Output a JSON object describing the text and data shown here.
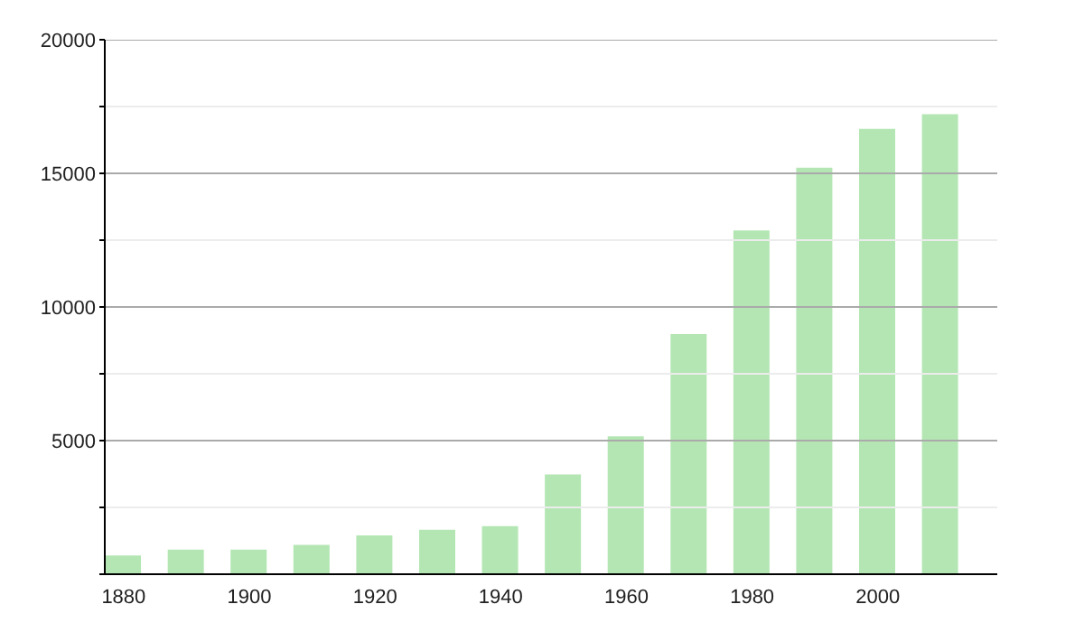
{
  "chart_data": {
    "type": "bar",
    "x": [
      1880,
      1890,
      1900,
      1910,
      1920,
      1930,
      1940,
      1950,
      1960,
      1970,
      1980,
      1990,
      2000,
      2010
    ],
    "values": [
      700,
      920,
      920,
      1100,
      1450,
      1660,
      1800,
      3730,
      5160,
      8990,
      12860,
      15210,
      16660,
      17210
    ],
    "color": "#b3e6b3",
    "xlim": [
      1877,
      2019
    ],
    "xticks": [
      1880,
      1900,
      1920,
      1940,
      1960,
      1980,
      2000
    ],
    "ylim": [
      0,
      20000
    ],
    "yticks": [
      {
        "value": 0,
        "label": null
      },
      {
        "value": 2500,
        "label": null
      },
      5000,
      {
        "value": 7500,
        "label": null
      },
      10000,
      {
        "value": 12500,
        "label": null
      },
      15000,
      {
        "value": 17500,
        "label": null
      },
      20000
    ],
    "grid": "y"
  }
}
